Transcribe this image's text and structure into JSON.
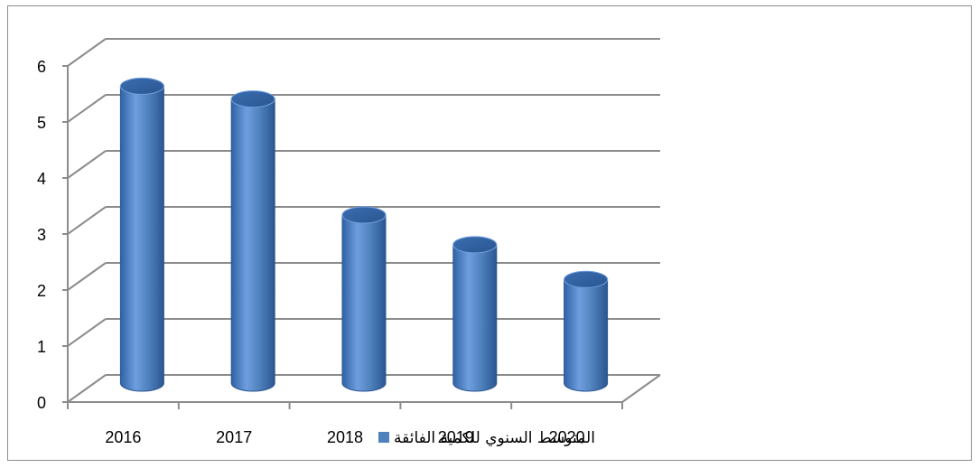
{
  "chart_data": {
    "type": "bar",
    "style": "3d-cylinder",
    "categories": [
      "2016",
      "2017",
      "2018",
      "2019",
      "2020"
    ],
    "series": [
      {
        "name": "المتوسط السنوي للكمية الفائقة",
        "values": [
          5.3,
          5.07,
          3.0,
          2.47,
          1.85
        ]
      }
    ],
    "yticks": [
      "0",
      "1",
      "2",
      "3",
      "4",
      "5",
      "6"
    ],
    "ylim": [
      0,
      6
    ],
    "grid": true,
    "legend_position": "bottom",
    "colors": {
      "bar": "#4f81bd",
      "bar_dark": "#2a5a9a",
      "bar_light": "#7ba7dd",
      "grid": "#8c8c8c",
      "frame": "#8c8c8c"
    }
  }
}
